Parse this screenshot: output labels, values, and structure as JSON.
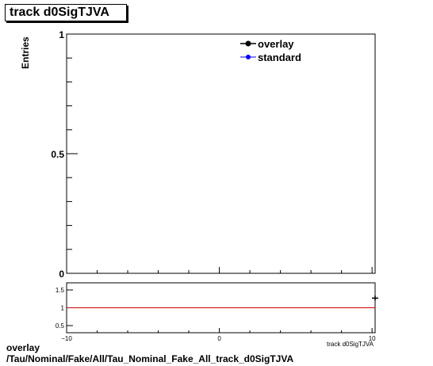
{
  "chart_data": [
    {
      "type": "scatter",
      "title": "track d0SigTJVA",
      "ylabel": "Entries",
      "xlim": [
        -10,
        10.2
      ],
      "ylim": [
        0,
        1
      ],
      "y_ticks": [
        {
          "v": 0,
          "label": "0"
        },
        {
          "v": 0.5,
          "label": "0.5"
        },
        {
          "v": 1,
          "label": "1"
        }
      ],
      "legend_position": "top-right",
      "series": [
        {
          "name": "overlay",
          "color": "#000000",
          "x": [],
          "y": []
        },
        {
          "name": "standard",
          "color": "#0000ff",
          "x": [],
          "y": []
        }
      ]
    },
    {
      "type": "scatter",
      "xlabel": "track d0SigTJVA",
      "xlim": [
        -10,
        10.2
      ],
      "ylim": [
        0.3,
        1.7
      ],
      "x_ticks": [
        {
          "v": -10,
          "label": "−10"
        },
        {
          "v": 0,
          "label": "0"
        },
        {
          "v": 10,
          "label": "10"
        }
      ],
      "y_ticks": [
        {
          "v": 0.5,
          "label": "0.5"
        },
        {
          "v": 1,
          "label": "1"
        },
        {
          "v": 1.5,
          "label": "1.5"
        }
      ],
      "reference_line": {
        "y": 1,
        "color": "#cc0000"
      },
      "series": [
        {
          "name": "ratio",
          "color": "#000000",
          "x": [
            10.2
          ],
          "y": [
            1.27
          ],
          "yerr": [
            0.07
          ]
        }
      ]
    }
  ],
  "footer": {
    "line1": "overlay",
    "line2": "/Tau/Nominal/Fake/All/Tau_Nominal_Fake_All_track_d0SigTJVA"
  }
}
